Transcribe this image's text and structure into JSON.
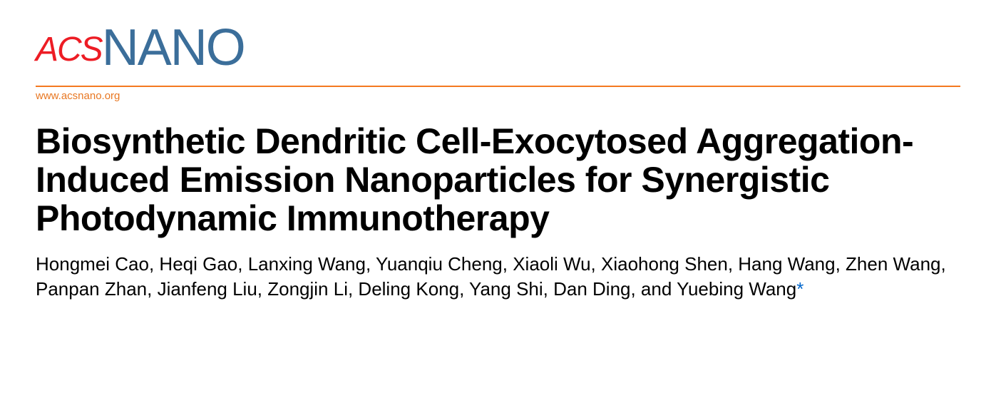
{
  "journal": {
    "logo_prefix": "ACS",
    "logo_name": "NANO",
    "url": "www.acsnano.org",
    "colors": {
      "acs_red": "#ed1c24",
      "nano_blue": "#3b6e9a",
      "divider_orange": "#f47920",
      "url_orange": "#e87722"
    },
    "typography": {
      "logo_prefix_fontsize": 48,
      "logo_name_fontsize": 72,
      "url_fontsize": 15
    }
  },
  "article": {
    "title": "Biosynthetic Dendritic Cell-Exocytosed Aggregation-Induced Emission Nanoparticles for Synergistic Photodynamic Immunotherapy",
    "title_fontsize": 50,
    "title_color": "#000000",
    "authors_line": "Hongmei Cao, Heqi Gao, Lanxing Wang, Yuanqiu Cheng, Xiaoli Wu, Xiaohong Shen, Hang Wang, Zhen Wang, Panpan Zhan, Jianfeng Liu, Zongjin Li, Deling Kong, Yang Shi, Dan Ding, and Yuebing Wang",
    "authors_fontsize": 26,
    "corresponding_mark": "*",
    "corresponding_color": "#0066cc"
  }
}
